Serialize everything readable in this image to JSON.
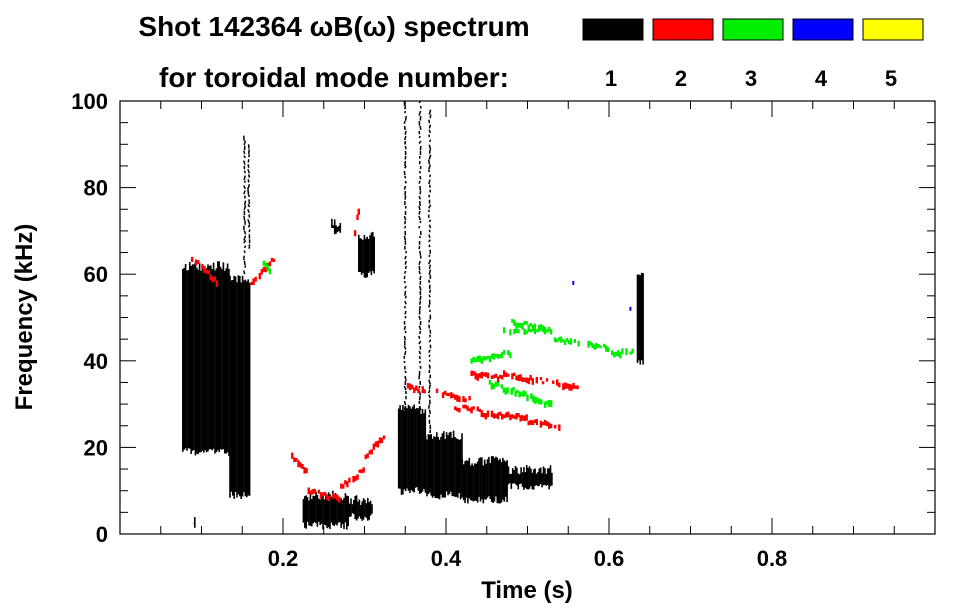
{
  "chart_data": {
    "type": "heatmap",
    "title_line1": "Shot 142364 ωB(ω) spectrum",
    "title_line2": "for toroidal mode number:",
    "xlabel": "Time (s)",
    "ylabel": "Frequency (kHz)",
    "xlim": [
      0.0,
      1.0
    ],
    "ylim": [
      0,
      100
    ],
    "x_ticks": [
      0.2,
      0.4,
      0.6,
      0.8
    ],
    "x_tick_labels": [
      "0.2",
      "0.4",
      "0.6",
      "0.8"
    ],
    "y_ticks": [
      0,
      20,
      40,
      60,
      80,
      100
    ],
    "y_tick_labels": [
      "0",
      "20",
      "40",
      "60",
      "80",
      "100"
    ],
    "x_minor_step": 0.05,
    "y_minor_step": 5,
    "grid": false,
    "legend_placement": "top-right",
    "legend": [
      {
        "label": "1",
        "color": "#000000"
      },
      {
        "label": "2",
        "color": "#ff0000"
      },
      {
        "label": "3",
        "color": "#00ee00"
      },
      {
        "label": "4",
        "color": "#0000ff"
      },
      {
        "label": "5",
        "color": "#ffff00"
      }
    ],
    "series": [
      {
        "mode": 1,
        "color": "#000000",
        "regions": [
          {
            "t": [
              0.077,
              0.135
            ],
            "f": [
              18,
              63
            ]
          },
          {
            "t": [
              0.135,
              0.16
            ],
            "f": [
              8,
              60
            ]
          },
          {
            "t": [
              0.09,
              0.093
            ],
            "f": [
              1,
              4
            ]
          },
          {
            "t": [
              0.225,
              0.28
            ],
            "f": [
              1,
              10
            ]
          },
          {
            "t": [
              0.28,
              0.31
            ],
            "f": [
              3,
              9
            ]
          },
          {
            "t": [
              0.26,
              0.272
            ],
            "f": [
              69,
              73
            ]
          },
          {
            "t": [
              0.293,
              0.312
            ],
            "f": [
              59,
              70
            ]
          },
          {
            "t": [
              0.342,
              0.375
            ],
            "f": [
              9,
              30
            ]
          },
          {
            "t": [
              0.375,
              0.42
            ],
            "f": [
              8,
              24
            ]
          },
          {
            "t": [
              0.42,
              0.475
            ],
            "f": [
              7,
              18
            ]
          },
          {
            "t": [
              0.475,
              0.53
            ],
            "f": [
              10,
              16
            ]
          },
          {
            "t": [
              0.635,
              0.643
            ],
            "f": [
              39,
              61
            ]
          }
        ],
        "ridges": [
          {
            "t": [
              0.35,
              0.35
            ],
            "f": [
              10,
              100
            ]
          },
          {
            "t": [
              0.368,
              0.368
            ],
            "f": [
              10,
              100
            ]
          },
          {
            "t": [
              0.38,
              0.38
            ],
            "f": [
              10,
              98
            ]
          },
          {
            "t": [
              0.153,
              0.153
            ],
            "f": [
              60,
              92
            ]
          },
          {
            "t": [
              0.158,
              0.158
            ],
            "f": [
              66,
              90
            ]
          }
        ]
      },
      {
        "mode": 2,
        "color": "#ff0000",
        "tracks": [
          {
            "t": [
              0.087,
              0.12
            ],
            "f": [
              64,
              58
            ]
          },
          {
            "t": [
              0.16,
              0.19
            ],
            "f": [
              58,
              64
            ]
          },
          {
            "t": [
              0.21,
              0.23
            ],
            "f": [
              18,
              14
            ]
          },
          {
            "t": [
              0.23,
              0.27
            ],
            "f": [
              10,
              8
            ]
          },
          {
            "t": [
              0.27,
              0.3
            ],
            "f": [
              11,
              15
            ]
          },
          {
            "t": [
              0.3,
              0.325
            ],
            "f": [
              18,
              23
            ]
          },
          {
            "t": [
              0.352,
              0.375
            ],
            "f": [
              34,
              33
            ]
          },
          {
            "t": [
              0.385,
              0.43
            ],
            "f": [
              33,
              31
            ]
          },
          {
            "t": [
              0.43,
              0.47
            ],
            "f": [
              37,
              36
            ]
          },
          {
            "t": [
              0.47,
              0.525
            ],
            "f": [
              37,
              35
            ]
          },
          {
            "t": [
              0.53,
              0.565
            ],
            "f": [
              35,
              34
            ]
          },
          {
            "t": [
              0.41,
              0.44
            ],
            "f": [
              29,
              29
            ]
          },
          {
            "t": [
              0.44,
              0.5
            ],
            "f": [
              28,
              27
            ]
          },
          {
            "t": [
              0.5,
              0.54
            ],
            "f": [
              26,
              25
            ]
          },
          {
            "t": [
              0.287,
              0.293
            ],
            "f": [
              70,
              76
            ]
          }
        ]
      },
      {
        "mode": 3,
        "color": "#00ee00",
        "tracks": [
          {
            "t": [
              0.175,
              0.185
            ],
            "f": [
              63,
              60
            ]
          },
          {
            "t": [
              0.43,
              0.48
            ],
            "f": [
              40,
              42
            ]
          },
          {
            "t": [
              0.48,
              0.53
            ],
            "f": [
              49,
              47
            ]
          },
          {
            "t": [
              0.53,
              0.6
            ],
            "f": [
              45,
              43
            ]
          },
          {
            "t": [
              0.6,
              0.63
            ],
            "f": [
              42,
              42
            ]
          },
          {
            "t": [
              0.45,
              0.53
            ],
            "f": [
              35,
              30
            ]
          },
          {
            "t": [
              0.47,
              0.53
            ],
            "f": [
              47,
              47
            ]
          }
        ]
      },
      {
        "mode": 4,
        "color": "#0000ff",
        "points": [
          [
            0.555,
            58
          ],
          [
            0.625,
            52
          ]
        ]
      },
      {
        "mode": 5,
        "color": "#ffff00",
        "points": []
      }
    ]
  }
}
